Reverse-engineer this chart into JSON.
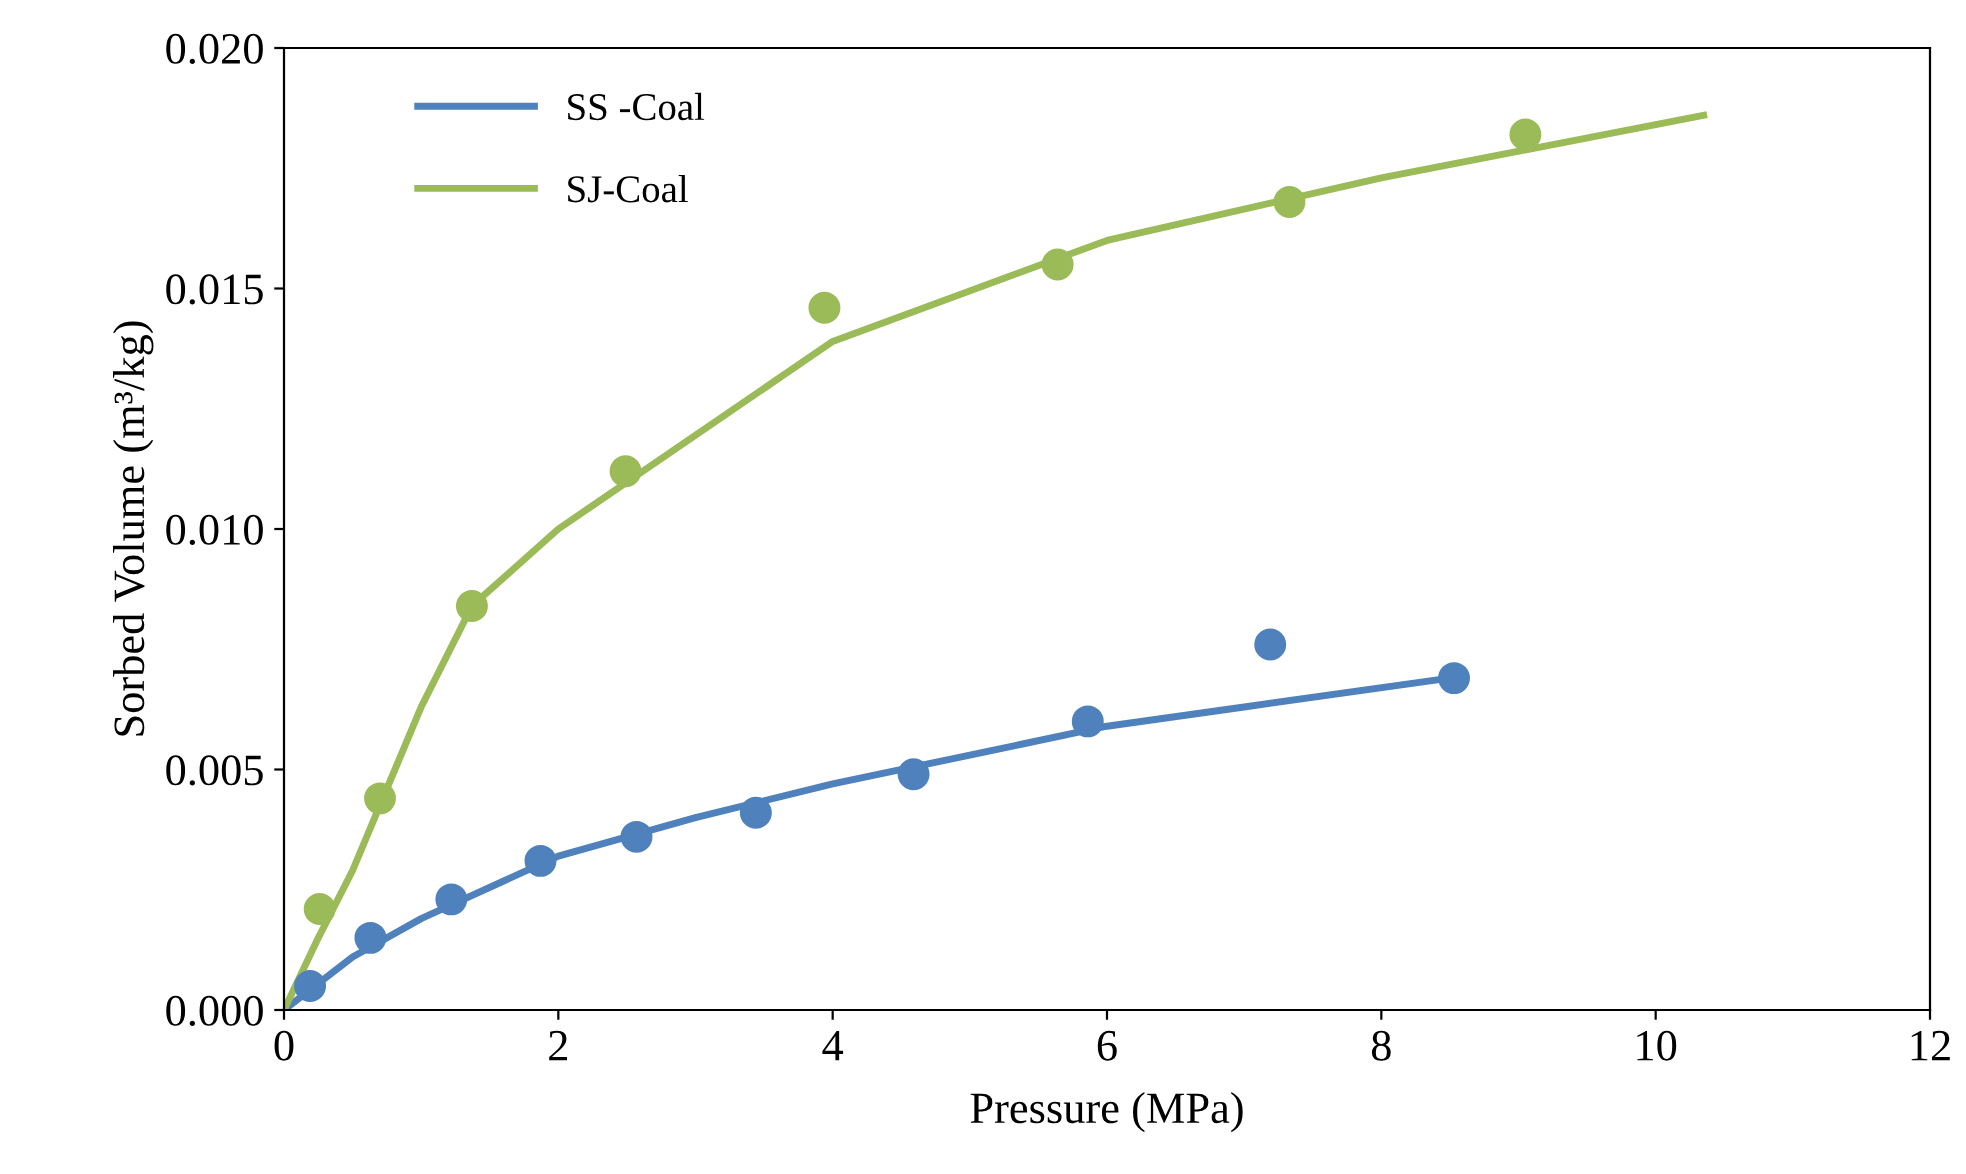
{
  "chart_data": {
    "type": "line",
    "xlabel": "Pressure (MPa)",
    "ylabel": "Sorbed Volume (m³/kg)",
    "xlim": [
      0,
      12
    ],
    "xticks": [
      0,
      2,
      4,
      6,
      8,
      10,
      12
    ],
    "ylim": [
      0,
      0.02
    ],
    "yticks": [
      {
        "value": 0,
        "label": "0.000"
      },
      {
        "value": 0.005,
        "label": "0.005"
      },
      {
        "value": 0.01,
        "label": "0.010"
      },
      {
        "value": 0.015,
        "label": "0.015"
      },
      {
        "value": 0.02,
        "label": "0.020"
      }
    ],
    "grid": false,
    "legend": "top left",
    "series": [
      {
        "name": "SS -Coal",
        "marker": "none",
        "color": "#4f81bd",
        "x": [
          0,
          0.5,
          1,
          2,
          3,
          4,
          5,
          6,
          7,
          8.5
        ],
        "values": [
          0,
          0.0011,
          0.0019,
          0.0032,
          0.004,
          0.0047,
          0.0053,
          0.0059,
          0.0063,
          0.0069
        ]
      },
      {
        "name": "SJ-Coal",
        "marker": "none",
        "color": "#9bbb59",
        "x": [
          0,
          0.25,
          0.5,
          1,
          1.37,
          2,
          4,
          6,
          8,
          10.35
        ],
        "values": [
          0,
          0.0015,
          0.0029,
          0.0063,
          0.0084,
          0.01,
          0.0139,
          0.016,
          0.0173,
          0.0186
        ]
      },
      {
        "type": "scatter",
        "marker": "circle",
        "color": "#4f81bd",
        "x": [
          0.19,
          0.63,
          1.22,
          1.87,
          2.57,
          3.44,
          4.59,
          5.86,
          7.19,
          8.53
        ],
        "values": [
          0.0005,
          0.0015,
          0.0023,
          0.0031,
          0.0036,
          0.0041,
          0.0049,
          0.006,
          0.0076,
          0.0069
        ]
      },
      {
        "type": "scatter",
        "marker": "circle",
        "color": "#9bbb59",
        "x": [
          0.26,
          0.7,
          1.37,
          2.49,
          3.94,
          5.64,
          7.33,
          9.05
        ],
        "values": [
          0.0021,
          0.0044,
          0.0084,
          0.0112,
          0.0146,
          0.0155,
          0.0168,
          0.0182
        ]
      }
    ]
  }
}
